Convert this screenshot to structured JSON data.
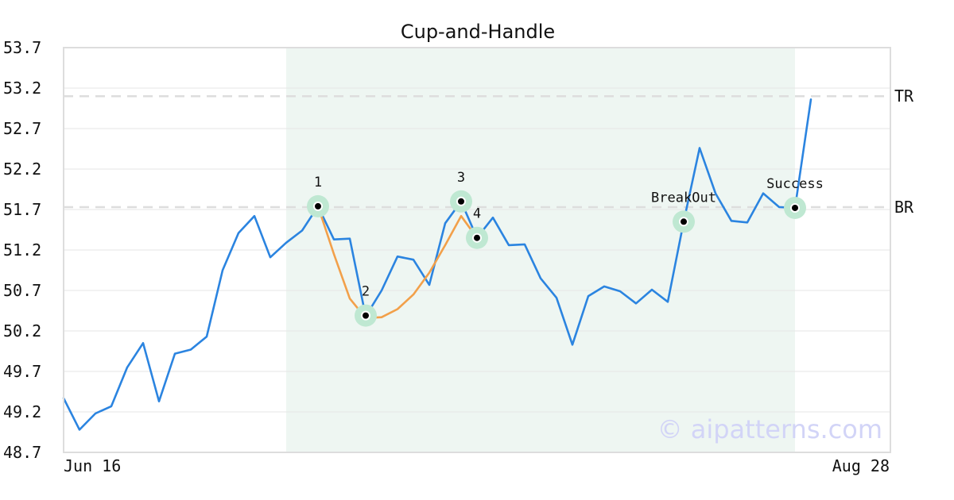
{
  "chart_data": {
    "type": "line",
    "title": "Cup-and-Handle",
    "ylim": [
      48.7,
      53.7
    ],
    "yticks": [
      "53.7",
      "53.2",
      "52.7",
      "52.2",
      "51.7",
      "51.2",
      "50.7",
      "50.2",
      "49.7",
      "49.2",
      "48.7"
    ],
    "x_start_label": "Jun 16",
    "x_end_label": "Aug 28",
    "grid": true,
    "series": [
      {
        "role": "price",
        "color": "#2b84e0",
        "values": [
          49.37,
          48.98,
          49.18,
          49.27,
          49.75,
          50.05,
          49.33,
          49.92,
          49.97,
          50.13,
          50.95,
          51.41,
          51.62,
          51.11,
          51.29,
          51.44,
          51.74,
          51.33,
          51.34,
          50.38,
          50.7,
          51.12,
          51.08,
          50.77,
          51.53,
          51.8,
          51.35,
          51.6,
          51.26,
          51.27,
          50.85,
          50.61,
          50.03,
          50.63,
          50.75,
          50.69,
          50.54,
          50.71,
          50.56,
          51.55,
          52.46,
          51.9,
          51.56,
          51.54,
          51.9,
          51.73,
          51.72,
          53.06
        ]
      },
      {
        "role": "cup-curve",
        "color": "#f2a04a",
        "x_offset": 16,
        "values": [
          51.74,
          51.15,
          50.6,
          50.36,
          50.37,
          50.47,
          50.65,
          50.92,
          51.26,
          51.62,
          51.35
        ]
      }
    ],
    "levels": [
      {
        "label": "TR",
        "value": 53.1
      },
      {
        "label": "BR",
        "value": 51.73
      }
    ],
    "highlight_range": {
      "from": 14,
      "to": 46,
      "color": "#eef6f2"
    },
    "points": [
      {
        "label": "1",
        "x": 16,
        "y": 51.74,
        "label_pos": "above"
      },
      {
        "label": "2",
        "x": 19,
        "y": 50.39,
        "label_pos": "above"
      },
      {
        "label": "3",
        "x": 25,
        "y": 51.8,
        "label_pos": "above"
      },
      {
        "label": "4",
        "x": 26,
        "y": 51.35,
        "label_pos": "above"
      },
      {
        "label": "BreakOut",
        "x": 39,
        "y": 51.55,
        "label_pos": "above"
      },
      {
        "label": "Success",
        "x": 46,
        "y": 51.72,
        "label_pos": "above"
      }
    ],
    "watermark": "© aipatterns.com",
    "colors": {
      "grid": "#e6e6e6",
      "level": "#dddddd",
      "marker_ring": "#bfe8d2",
      "frame": "#dddddd",
      "watermark": "#d2d4f7"
    }
  }
}
